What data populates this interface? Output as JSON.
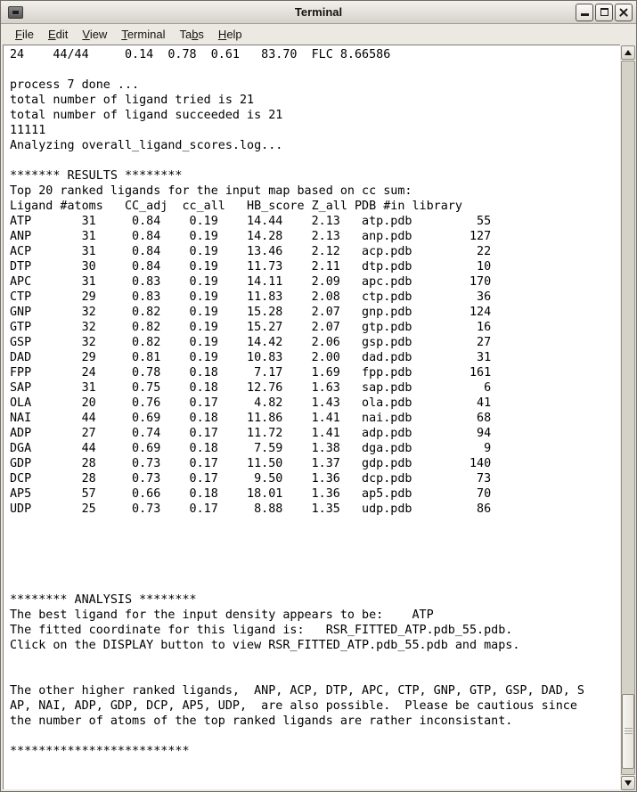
{
  "window": {
    "title": "Terminal"
  },
  "menubar": {
    "items": [
      {
        "label": "File",
        "mnemonic": "F"
      },
      {
        "label": "Edit",
        "mnemonic": "E"
      },
      {
        "label": "View",
        "mnemonic": "V"
      },
      {
        "label": "Terminal",
        "mnemonic": "T"
      },
      {
        "label": "Tabs",
        "mnemonic": "b"
      },
      {
        "label": "Help",
        "mnemonic": "H"
      }
    ]
  },
  "terminal": {
    "lines": [
      "24    44/44     0.14  0.78  0.61   83.70  FLC 8.66586",
      "",
      "process 7 done ...",
      "total number of ligand tried is 21",
      "total number of ligand succeeded is 21",
      "11111",
      "Analyzing overall_ligand_scores.log...",
      "",
      "******* RESULTS ********",
      "Top 20 ranked ligands for the input map based on cc sum:",
      "Ligand #atoms   CC_adj  cc_all   HB_score Z_all PDB #in library",
      "ATP       31     0.84    0.19    14.44    2.13   atp.pdb         55",
      "ANP       31     0.84    0.19    14.28    2.13   anp.pdb        127",
      "ACP       31     0.84    0.19    13.46    2.12   acp.pdb         22",
      "DTP       30     0.84    0.19    11.73    2.11   dtp.pdb         10",
      "APC       31     0.83    0.19    14.11    2.09   apc.pdb        170",
      "CTP       29     0.83    0.19    11.83    2.08   ctp.pdb         36",
      "GNP       32     0.82    0.19    15.28    2.07   gnp.pdb        124",
      "GTP       32     0.82    0.19    15.27    2.07   gtp.pdb         16",
      "GSP       32     0.82    0.19    14.42    2.06   gsp.pdb         27",
      "DAD       29     0.81    0.19    10.83    2.00   dad.pdb         31",
      "FPP       24     0.78    0.18     7.17    1.69   fpp.pdb        161",
      "SAP       31     0.75    0.18    12.76    1.63   sap.pdb          6",
      "OLA       20     0.76    0.17     4.82    1.43   ola.pdb         41",
      "NAI       44     0.69    0.18    11.86    1.41   nai.pdb         68",
      "ADP       27     0.74    0.17    11.72    1.41   adp.pdb         94",
      "DGA       44     0.69    0.18     7.59    1.38   dga.pdb          9",
      "GDP       28     0.73    0.17    11.50    1.37   gdp.pdb        140",
      "DCP       28     0.73    0.17     9.50    1.36   dcp.pdb         73",
      "AP5       57     0.66    0.18    18.01    1.36   ap5.pdb         70",
      "UDP       25     0.73    0.17     8.88    1.35   udp.pdb         86",
      "",
      "",
      "",
      "",
      "",
      "******** ANALYSIS ********",
      "The best ligand for the input density appears to be:    ATP",
      "The fitted coordinate for this ligand is:   RSR_FITTED_ATP.pdb_55.pdb.",
      "Click on the DISPLAY button to view RSR_FITTED_ATP.pdb_55.pdb and maps.",
      "",
      "",
      "The other higher ranked ligands,  ANP, ACP, DTP, APC, CTP, GNP, GTP, GSP, DAD, S",
      "AP, NAI, ADP, GDP, DCP, AP5, UDP,  are also possible.  Please be cautious since",
      "the number of atoms of the top ranked ligands are rather inconsistant.",
      "",
      "*************************"
    ]
  }
}
